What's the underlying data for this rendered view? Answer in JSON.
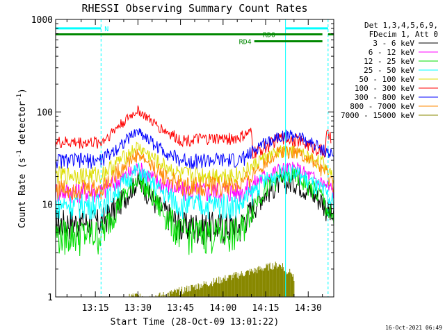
{
  "chart_data": {
    "type": "line",
    "title": "RHESSI Observing Summary Count Rates",
    "xlabel": "Start Time (28-Oct-09 13:01:22)",
    "ylabel_parts": [
      "Count Rate (s",
      "-1",
      " detector",
      "-1",
      ")"
    ],
    "y_scale": "log",
    "ylim": [
      1,
      1000
    ],
    "xlim": [
      "13:01",
      "14:39"
    ],
    "x_ticks": [
      "13:15",
      "13:30",
      "13:45",
      "14:00",
      "14:15",
      "14:30"
    ],
    "y_ticks": [
      1,
      10,
      100,
      1000
    ],
    "y_tick_labels": [
      "1",
      "10",
      "100",
      "1000"
    ],
    "grid": false,
    "legend_header": [
      "Det 1,3,4,5,6,9,",
      "FDecim 1, Att 0"
    ],
    "legend_placement": "right",
    "series": [
      {
        "name": "3 - 6 keV",
        "color": "#000000",
        "x": [
          "13:01",
          "13:17",
          "13:23",
          "13:30",
          "13:37",
          "13:45",
          "14:06",
          "14:10",
          "14:13",
          "14:20",
          "14:26",
          "14:35",
          "14:39"
        ],
        "y": [
          6.5,
          6.5,
          10,
          18,
          10,
          6,
          6,
          9,
          12,
          17,
          17,
          11,
          7
        ]
      },
      {
        "name": "6 - 12 keV",
        "color": "#ff00ff",
        "x": [
          "13:01",
          "13:17",
          "13:23",
          "13:30",
          "13:37",
          "13:45",
          "14:06",
          "14:10",
          "14:13",
          "14:20",
          "14:26",
          "14:35",
          "14:39"
        ],
        "y": [
          14,
          14,
          18,
          25,
          18,
          14,
          14,
          16,
          19,
          24,
          24,
          17,
          14
        ]
      },
      {
        "name": "12 - 25 keV",
        "color": "#00dd00",
        "x": [
          "13:01",
          "13:17",
          "13:23",
          "13:30",
          "13:37",
          "13:45",
          "14:06",
          "14:10",
          "14:13",
          "14:20",
          "14:26",
          "14:35",
          "14:39"
        ],
        "y": [
          4.8,
          4.8,
          10,
          20,
          10,
          5,
          5,
          9,
          13,
          20,
          20,
          12,
          6
        ]
      },
      {
        "name": "25 - 50 keV",
        "color": "#00ffff",
        "x": [
          "13:01",
          "13:17",
          "13:23",
          "13:30",
          "13:37",
          "13:45",
          "14:06",
          "14:10",
          "14:13",
          "14:20",
          "14:26",
          "14:35",
          "14:39"
        ],
        "y": [
          10,
          10,
          15,
          24,
          15,
          10,
          10,
          13,
          17,
          22,
          22,
          14,
          10
        ]
      },
      {
        "name": "50 - 100 keV",
        "color": "#dddd00",
        "x": [
          "13:01",
          "13:17",
          "13:23",
          "13:30",
          "13:37",
          "13:45",
          "14:06",
          "14:10",
          "14:13",
          "14:20",
          "14:26",
          "14:35",
          "14:39"
        ],
        "y": [
          21,
          21,
          29,
          42,
          29,
          21,
          21,
          25,
          30,
          37,
          37,
          28,
          21
        ]
      },
      {
        "name": "100 - 300 keV",
        "color": "#ff0000",
        "x": [
          "13:01",
          "13:17",
          "13:23",
          "13:30",
          "13:37",
          "13:45",
          "14:05",
          "14:10",
          "14:10.5",
          "14:15",
          "14:20",
          "14:26",
          "14:36",
          "14:36.5",
          "14:38"
        ],
        "y": [
          47,
          47,
          70,
          105,
          70,
          50,
          52,
          60,
          36,
          42,
          53,
          50,
          37,
          58,
          52
        ]
      },
      {
        "name": "300 - 800 keV",
        "color": "#0000ff",
        "x": [
          "13:01",
          "13:17",
          "13:23",
          "13:30",
          "13:37",
          "13:45",
          "14:06",
          "14:10",
          "14:13",
          "14:20",
          "14:26",
          "14:35",
          "14:39"
        ],
        "y": [
          30,
          30,
          42,
          63,
          42,
          30,
          30,
          36,
          44,
          56,
          56,
          40,
          33
        ]
      },
      {
        "name": "800 - 7000 keV",
        "color": "#ff8800",
        "x": [
          "13:01",
          "13:17",
          "13:23",
          "13:30",
          "13:37",
          "13:45",
          "14:06",
          "14:10",
          "14:13",
          "14:20",
          "14:26",
          "14:35",
          "14:39"
        ],
        "y": [
          15,
          15,
          23,
          35,
          23,
          16,
          16,
          20,
          26,
          38,
          38,
          24,
          16
        ]
      },
      {
        "name": "7000 - 15000 keV",
        "color": "#888800",
        "x": [
          "13:27",
          "13:38",
          "14:18",
          "14:21",
          "14:22",
          "14:24",
          "14:25"
        ],
        "y": [
          1.02,
          1.02,
          2.2,
          2.2,
          1.8,
          2.0,
          1.5
        ]
      }
    ],
    "annotations": [
      {
        "label": "N",
        "color": "#00ffff",
        "x_start": "13:01",
        "x_end": "13:17",
        "level": 800
      },
      {
        "label": "",
        "color": "#00ffff",
        "x_start": "14:22",
        "x_end": "14:37",
        "level": 800
      },
      {
        "label": "RD0",
        "color": "#008800",
        "x_start": "13:01",
        "x_end": "14:35",
        "level": 690
      },
      {
        "label": "",
        "color": "#008800",
        "x_start": "14:37",
        "x_end": "14:39",
        "level": 690
      },
      {
        "label": "RD4",
        "color": "#008800",
        "x_start": "14:11",
        "x_end": "14:35",
        "level": 580
      }
    ],
    "vertical_markers": [
      {
        "time": "13:17",
        "color": "#00ffff",
        "style": "dashed"
      },
      {
        "time": "14:22",
        "color": "#00ffff",
        "style": "solid"
      },
      {
        "time": "14:37",
        "color": "#00ffff",
        "style": "dashed"
      },
      {
        "time": "13:01",
        "color": "#00ffff",
        "style": "solid"
      }
    ]
  },
  "timestamp": "16-Oct-2021 06:49"
}
